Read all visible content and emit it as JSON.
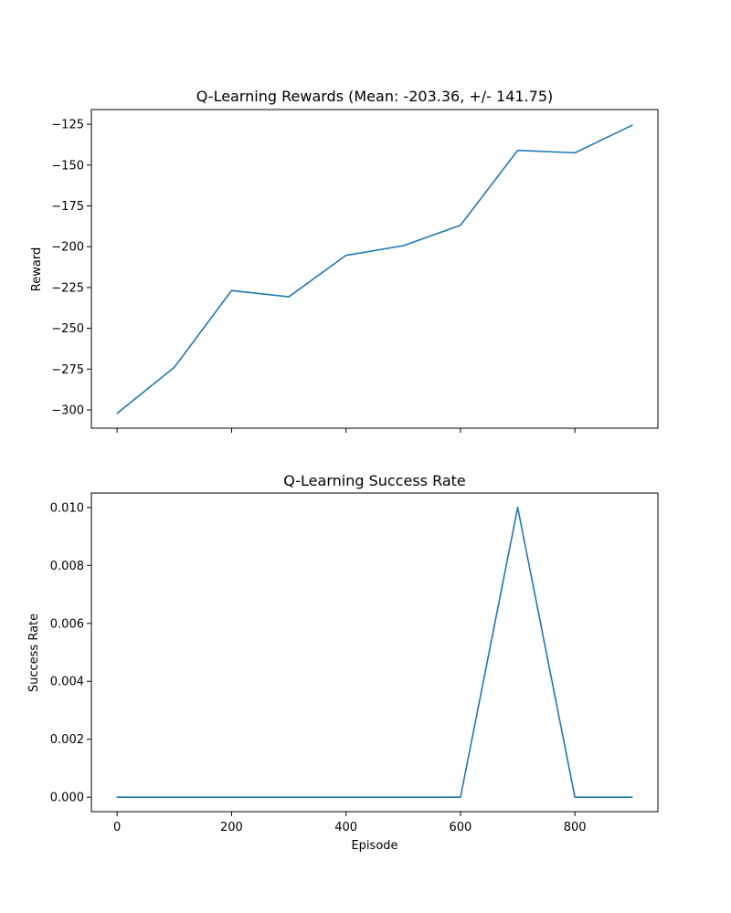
{
  "chart_data": [
    {
      "type": "line",
      "title": "Q-Learning Rewards (Mean: -203.36, +/- 141.75)",
      "xlabel": "",
      "ylabel": "Reward",
      "xlim": [
        -45,
        945
      ],
      "ylim": [
        -311.2,
        -116.0
      ],
      "x_ticks": [
        0,
        200,
        400,
        600,
        800
      ],
      "x_tick_labels": [
        "",
        "",
        "",
        "",
        ""
      ],
      "y_ticks": [
        -300,
        -275,
        -250,
        -225,
        -200,
        -175,
        -150,
        -125
      ],
      "y_tick_labels": [
        "−300",
        "−275",
        "−250",
        "−225",
        "−200",
        "−175",
        "−150",
        "−125"
      ],
      "grid": false,
      "color": "#1f77b4",
      "series": [
        {
          "x": [
            0,
            100,
            200,
            300,
            400,
            500,
            600,
            700,
            800,
            900
          ],
          "values": [
            -302.1,
            -273.9,
            -226.9,
            -230.7,
            -205.3,
            -199.4,
            -186.9,
            -141.0,
            -142.5,
            -125.6
          ]
        }
      ]
    },
    {
      "type": "line",
      "title": "Q-Learning Success Rate",
      "xlabel": "Episode",
      "ylabel": "Success Rate",
      "xlim": [
        -45,
        945
      ],
      "ylim": [
        -0.0005,
        0.0105
      ],
      "x_ticks": [
        0,
        200,
        400,
        600,
        800
      ],
      "x_tick_labels": [
        "0",
        "200",
        "400",
        "600",
        "800"
      ],
      "y_ticks": [
        0.0,
        0.002,
        0.004,
        0.006,
        0.008,
        0.01
      ],
      "y_tick_labels": [
        "0.000",
        "0.002",
        "0.004",
        "0.006",
        "0.008",
        "0.010"
      ],
      "grid": false,
      "color": "#1f77b4",
      "series": [
        {
          "x": [
            0,
            100,
            200,
            300,
            400,
            500,
            600,
            700,
            800,
            900
          ],
          "values": [
            0,
            0,
            0,
            0,
            0,
            0,
            0,
            0.01,
            0,
            0
          ]
        }
      ]
    }
  ]
}
